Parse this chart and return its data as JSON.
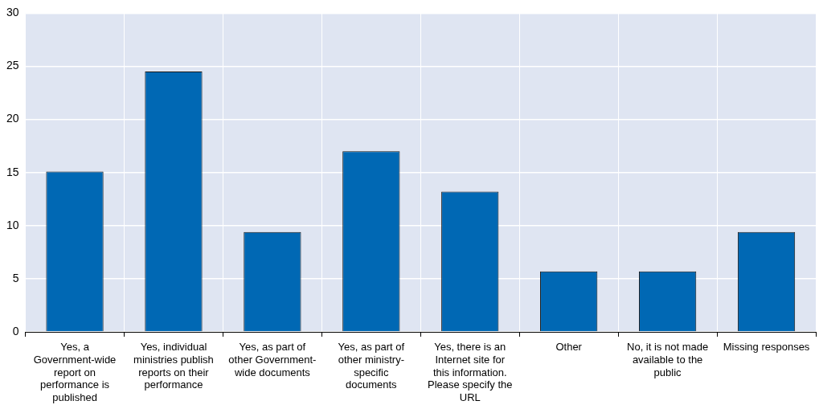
{
  "chart_data": {
    "type": "bar",
    "categories": [
      "Yes, a Government-wide report on performance is published",
      "Yes, individual ministries publish reports on their performance",
      "Yes, as part of other Government-wide documents",
      "Yes, as part of other ministry-specific documents",
      "Yes, there is an Internet site for this information. Please specify the URL",
      "Other",
      "No, it is not made available to the public",
      "Missing responses"
    ],
    "values": [
      15.1,
      24.5,
      9.4,
      17,
      13.2,
      5.7,
      5.7,
      9.4
    ],
    "color": "#0068b4",
    "ylim": [
      0,
      30
    ],
    "yticks": [
      0,
      5,
      10,
      15,
      20,
      25,
      30
    ],
    "grid": true,
    "legend": false
  }
}
